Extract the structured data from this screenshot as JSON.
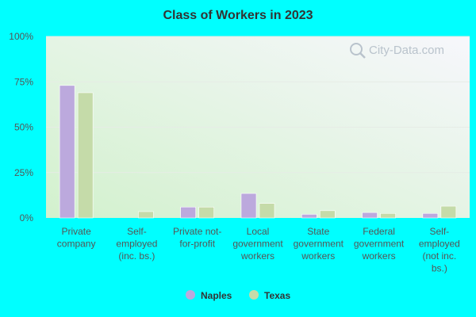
{
  "chart_data": {
    "type": "bar",
    "title": "Class of Workers in 2023",
    "xlabel": "",
    "ylabel": "",
    "ylim": [
      0,
      100
    ],
    "yticks": [
      0,
      25,
      50,
      75,
      100
    ],
    "ytick_labels": [
      "0%",
      "25%",
      "50%",
      "75%",
      "100%"
    ],
    "categories": [
      [
        "Private",
        "company"
      ],
      [
        "Self-",
        "employed",
        "(inc. bs.)"
      ],
      [
        "Private not-",
        "for-profit"
      ],
      [
        "Local",
        "government",
        "workers"
      ],
      [
        "State",
        "government",
        "workers"
      ],
      [
        "Federal",
        "government",
        "workers"
      ],
      [
        "Self-",
        "employed",
        "(not inc.",
        "bs.)"
      ]
    ],
    "series": [
      {
        "name": "Naples",
        "color": "#bca9dd",
        "values": [
          73,
          0,
          6,
          13.5,
          2,
          3,
          2.5
        ]
      },
      {
        "name": "Texas",
        "color": "#c5dba9",
        "values": [
          69,
          3.5,
          6,
          8,
          4,
          2.5,
          6.5
        ]
      }
    ],
    "legend_position": "bottom-center",
    "grid": true
  },
  "watermark": "City-Data.com",
  "colors": {
    "page_background": "#00ffff",
    "plot_background_top": "#f6f6fb",
    "plot_background_bottom": "#d4f2d0"
  }
}
